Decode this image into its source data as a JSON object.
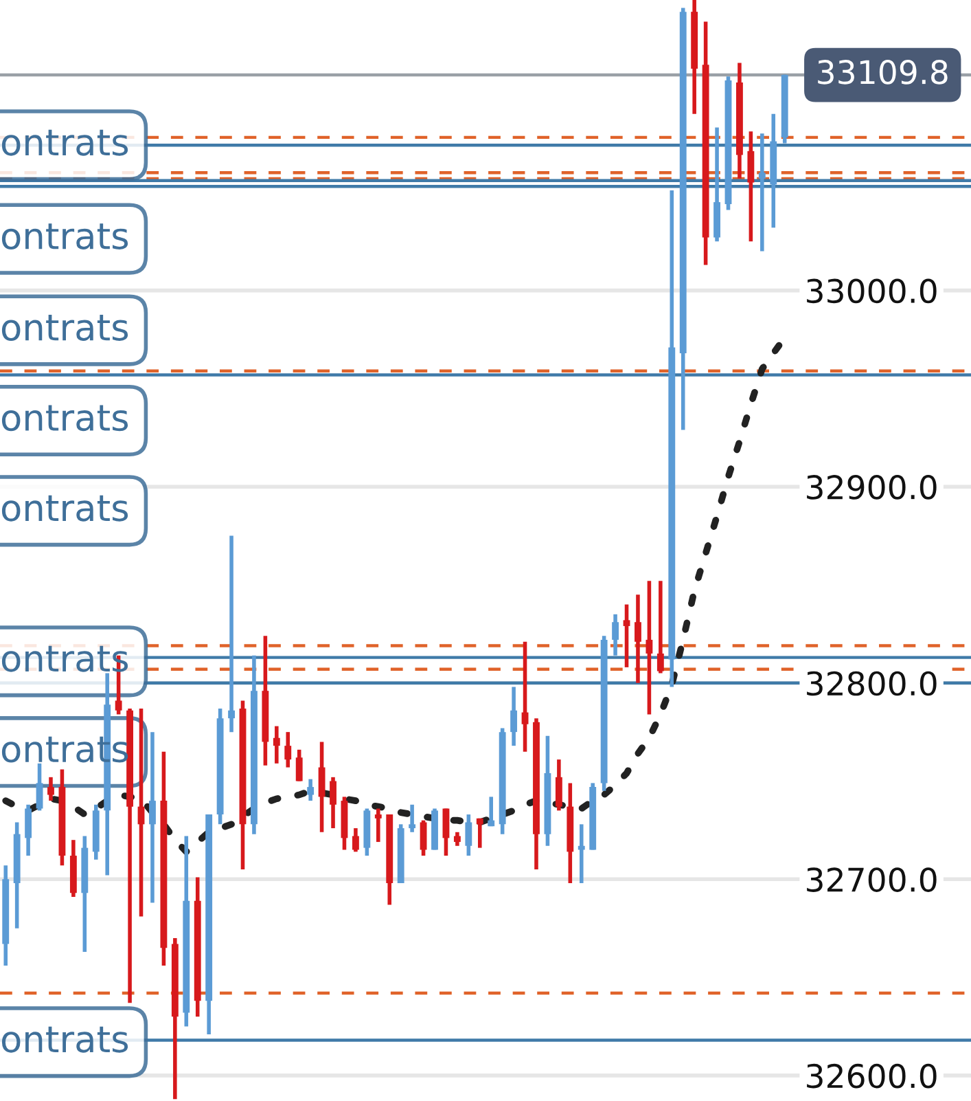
{
  "chart_data": {
    "type": "candlestick",
    "categories": [
      null,
      null,
      null,
      null,
      null,
      null,
      null,
      null,
      null,
      null,
      null,
      null,
      null,
      null,
      null,
      null,
      null,
      null,
      null,
      null,
      null,
      null,
      null,
      null,
      null,
      null,
      null,
      null,
      null,
      null,
      null,
      null,
      null,
      null,
      null,
      null,
      null,
      null,
      null,
      null,
      null,
      null,
      null,
      null,
      null,
      null,
      null,
      null,
      null,
      null,
      null,
      null,
      null,
      null,
      null,
      null,
      null,
      null,
      null,
      null,
      null,
      null,
      null,
      null,
      null,
      null,
      null,
      null,
      null,
      null,
      null,
      null,
      null,
      null,
      null,
      null,
      null,
      null,
      null,
      null,
      null,
      null,
      null,
      null,
      null,
      null
    ],
    "ohlc": [
      [
        32667,
        32707,
        32656,
        32700
      ],
      [
        32698,
        32729,
        32675,
        32723
      ],
      [
        32721,
        32738,
        32712,
        32736
      ],
      [
        32736,
        32759,
        32735,
        32749
      ],
      [
        32747,
        32752,
        32740,
        32743
      ],
      [
        32747,
        32756,
        32707,
        32712
      ],
      [
        32712,
        32720,
        32691,
        32693
      ],
      [
        32693,
        32722,
        32663,
        32716
      ],
      [
        32714,
        32738,
        32710,
        32735
      ],
      [
        32735,
        32805,
        32702,
        32789
      ],
      [
        32791,
        32814,
        32784,
        32786
      ],
      [
        32786,
        32787,
        32637,
        32737
      ],
      [
        32737,
        32787,
        32681,
        32728
      ],
      [
        32728,
        32775,
        32688,
        32740
      ],
      [
        32740,
        32765,
        32656,
        32665
      ],
      [
        32667,
        32670,
        32588,
        32630
      ],
      [
        32632,
        32722,
        32625,
        32689
      ],
      [
        32689,
        32701,
        32630,
        32638
      ],
      [
        32638,
        32733,
        32621,
        32733
      ],
      [
        32733,
        32787,
        32728,
        32782
      ],
      [
        32782,
        32875,
        32775,
        32786
      ],
      [
        32787,
        32791,
        32705,
        32728
      ],
      [
        32728,
        32814,
        32723,
        32796
      ],
      [
        32796,
        32824,
        32758,
        32770
      ],
      [
        32772,
        32778,
        32759,
        32768
      ],
      [
        32768,
        32775,
        32757,
        32761
      ],
      [
        32762,
        32766,
        32750,
        32750
      ],
      [
        32743,
        32751,
        32740,
        32747
      ],
      [
        32757,
        32770,
        32724,
        32742
      ],
      [
        32750,
        32752,
        32726,
        32738
      ],
      [
        32740,
        32742,
        32715,
        32721
      ],
      [
        32722,
        32726,
        32714,
        32715
      ],
      [
        32716,
        32736,
        32712,
        32735
      ],
      [
        32733,
        32736,
        32719,
        32731
      ],
      [
        32733,
        32733,
        32687,
        32698
      ],
      [
        32698,
        32728,
        32698,
        32726
      ],
      [
        32726,
        32738,
        32724,
        32728
      ],
      [
        32729,
        32730,
        32712,
        32715
      ],
      [
        32715,
        32736,
        32715,
        32735
      ],
      [
        32736,
        32736,
        32712,
        32721
      ],
      [
        32722,
        32724,
        32717,
        32719
      ],
      [
        32717,
        32733,
        32712,
        32729
      ],
      [
        32731,
        32731,
        32716,
        32728
      ],
      [
        32727,
        32742,
        32727,
        32730
      ],
      [
        32728,
        32777,
        32723,
        32775
      ],
      [
        32775,
        32798,
        32768,
        32786
      ],
      [
        32785,
        32821,
        32765,
        32779
      ],
      [
        32780,
        32782,
        32705,
        32723
      ],
      [
        32723,
        32773,
        32717,
        32754
      ],
      [
        32752,
        32761,
        32735,
        32737
      ],
      [
        32737,
        32749,
        32698,
        32714
      ],
      [
        32715,
        32728,
        32698,
        32717
      ],
      [
        32715,
        32749,
        32715,
        32747
      ],
      [
        32749,
        32824,
        32745,
        32822
      ],
      [
        32822,
        32835,
        32814,
        32831
      ],
      [
        32832,
        32840,
        32808,
        32829
      ],
      [
        32831,
        32845,
        32800,
        32821
      ],
      [
        32822,
        32852,
        32784,
        32815
      ],
      [
        32815,
        32852,
        32805,
        32806
      ],
      [
        32812,
        33051,
        32798,
        32971
      ],
      [
        32968,
        33144,
        32929,
        33142
      ],
      [
        33142,
        33148,
        33090,
        33113
      ],
      [
        33115,
        33137,
        33013,
        33027
      ],
      [
        33027,
        33083,
        33025,
        33045
      ],
      [
        33044,
        33109,
        33041,
        33107
      ],
      [
        33106,
        33116,
        33057,
        33069
      ],
      [
        33071,
        33081,
        33025,
        33055
      ],
      [
        33057,
        33080,
        33020,
        33060
      ],
      [
        33054,
        33090,
        33032,
        33076
      ],
      [
        33078,
        33110,
        33075,
        33109.8
      ],
      null,
      null,
      null,
      null,
      null,
      null,
      null,
      null,
      null,
      null,
      null,
      null,
      null,
      null,
      null,
      null
    ],
    "colors": [
      "#5b9bd5",
      "#5b9bd5",
      "#5b9bd5",
      "#5b9bd5",
      "#d7191c",
      "#d7191c",
      "#d7191c",
      "#5b9bd5",
      "#5b9bd5",
      "#5b9bd5",
      "#d7191c",
      "#d7191c",
      "#d7191c",
      "#5b9bd5",
      "#d7191c",
      "#d7191c",
      "#5b9bd5",
      "#d7191c",
      "#5b9bd5",
      "#5b9bd5",
      "#5b9bd5",
      "#d7191c",
      "#5b9bd5",
      "#d7191c",
      "#d7191c",
      "#d7191c",
      "#d7191c",
      "#5b9bd5",
      "#d7191c",
      "#d7191c",
      "#d7191c",
      "#d7191c",
      "#5b9bd5",
      "#d7191c",
      "#d7191c",
      "#5b9bd5",
      "#5b9bd5",
      "#d7191c",
      "#5b9bd5",
      "#d7191c",
      "#d7191c",
      "#5b9bd5",
      "#d7191c",
      "#5b9bd5",
      "#5b9bd5",
      "#5b9bd5",
      "#d7191c",
      "#d7191c",
      "#5b9bd5",
      "#d7191c",
      "#d7191c",
      "#5b9bd5",
      "#5b9bd5",
      "#5b9bd5",
      "#5b9bd5",
      "#d7191c",
      "#d7191c",
      "#d7191c",
      "#d7191c",
      "#5b9bd5",
      "#5b9bd5",
      "#d7191c",
      "#d7191c",
      "#5b9bd5",
      "#5b9bd5",
      "#d7191c",
      "#d7191c",
      "#5b9bd5",
      "#5b9bd5",
      "#5b9bd5",
      null,
      null,
      null,
      null,
      null,
      null,
      null,
      null,
      null,
      null,
      null,
      null,
      null,
      null,
      null,
      null
    ],
    "series": [
      {
        "type": "line",
        "color": "#222222",
        "line_style": "dotted",
        "values": [
          32740,
          32737,
          32735,
          32738,
          32741,
          32740,
          32737,
          32733,
          32736,
          32740,
          32743,
          32742,
          32741,
          32734,
          32728,
          32720,
          32714,
          32719,
          32724,
          32726,
          32728,
          32732,
          32736,
          32739,
          32741,
          32742,
          32743,
          32745,
          32744,
          32743,
          32741,
          32740,
          32738,
          32737,
          32736,
          32734,
          32733,
          32732,
          32731,
          32730,
          32730,
          32729,
          32729,
          32731,
          32733,
          32735,
          32738,
          32740,
          32739,
          32738,
          32737,
          32736,
          32740,
          32743,
          32748,
          32754,
          32764,
          32772,
          32784,
          32799,
          32822,
          32847,
          32866,
          32885,
          32905,
          32923,
          32942,
          32960,
          32968,
          32976,
          null,
          null,
          null,
          null,
          null,
          null,
          null,
          null,
          null,
          null,
          null,
          null,
          null,
          null,
          null,
          null
        ]
      }
    ],
    "ylim": [
      32587,
      33148
    ],
    "yticks": [
      {
        "value": 32600,
        "label": "32600.0"
      },
      {
        "value": 32700,
        "label": "32700.0"
      },
      {
        "value": 32800,
        "label": "32800.0"
      },
      {
        "value": 32900,
        "label": "32900.0"
      },
      {
        "value": 33000,
        "label": "33000.0"
      }
    ],
    "grid": "y",
    "ref_lines": [
      {
        "axis": "y",
        "value": 33109.8,
        "label": "33109.8",
        "color": "#9aa0a6",
        "line_style": "solid"
      },
      {
        "axis": "y",
        "value": 33078,
        "color": "#e0632a",
        "line_style": "dashed"
      },
      {
        "axis": "y",
        "value": 33060,
        "color": "#e0632a",
        "line_style": "dashed"
      },
      {
        "axis": "y",
        "value": 33057,
        "color": "#e0632a",
        "line_style": "dashed"
      },
      {
        "axis": "y",
        "value": 32959,
        "color": "#e0632a",
        "line_style": "dashed"
      },
      {
        "axis": "y",
        "value": 32819,
        "color": "#e0632a",
        "line_style": "dashed"
      },
      {
        "axis": "y",
        "value": 32807,
        "color": "#e0632a",
        "line_style": "dashed"
      },
      {
        "axis": "y",
        "value": 32642,
        "color": "#e0632a",
        "line_style": "dashed"
      },
      {
        "axis": "y",
        "value": 33074,
        "color": "#3f7aa8",
        "line_style": "solid"
      },
      {
        "axis": "y",
        "value": 33056,
        "color": "#3f7aa8",
        "line_style": "solid"
      },
      {
        "axis": "y",
        "value": 33053,
        "color": "#3f7aa8",
        "line_style": "solid"
      },
      {
        "axis": "y",
        "value": 32957,
        "color": "#3f7aa8",
        "line_style": "solid"
      },
      {
        "axis": "y",
        "value": 32813,
        "color": "#3f7aa8",
        "line_style": "solid"
      },
      {
        "axis": "y",
        "value": 32800,
        "color": "#3f7aa8",
        "line_style": "solid"
      },
      {
        "axis": "y",
        "value": 32618,
        "color": "#3f7aa8",
        "line_style": "solid"
      }
    ],
    "annotations": [
      {
        "text": "ontrats",
        "y": 33074
      },
      "ontrats",
      "ontrats",
      "ontrats",
      "ontrats",
      {
        "text": "ontrats",
        "y": 32811
      },
      "ontrats",
      {
        "text": "ontrats",
        "y": 32617
      }
    ]
  }
}
